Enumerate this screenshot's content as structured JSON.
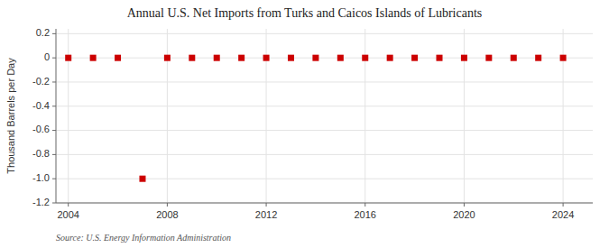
{
  "chart_data": {
    "type": "scatter",
    "title": "Annual U.S. Net Imports from Turks and Caicos Islands of Lubricants",
    "y_label": "Thousand Barrels per Day",
    "annotations": [
      "Source: U.S. Energy Information Administration"
    ],
    "x": [
      2004,
      2005,
      2006,
      2007,
      2008,
      2009,
      2010,
      2011,
      2012,
      2013,
      2014,
      2015,
      2016,
      2017,
      2018,
      2019,
      2020,
      2021,
      2022,
      2023,
      2024
    ],
    "values": [
      0,
      0,
      0,
      -1.0,
      0,
      0,
      0,
      0,
      0,
      0,
      0,
      0,
      0,
      0,
      0,
      0,
      0,
      0,
      0,
      0,
      0
    ],
    "color": "#cc0000",
    "marker": "square",
    "xlim": [
      2003.5,
      2025.2
    ],
    "xticks": [
      2004,
      2008,
      2012,
      2016,
      2020,
      2024
    ],
    "ylim": [
      -1.2,
      0.24
    ],
    "yticks": [
      0.2,
      0,
      -0.2,
      -0.4,
      -0.6,
      -0.8,
      {
        "value": -1.0,
        "label": "-1.0"
      },
      -1.2
    ],
    "grid": true
  }
}
